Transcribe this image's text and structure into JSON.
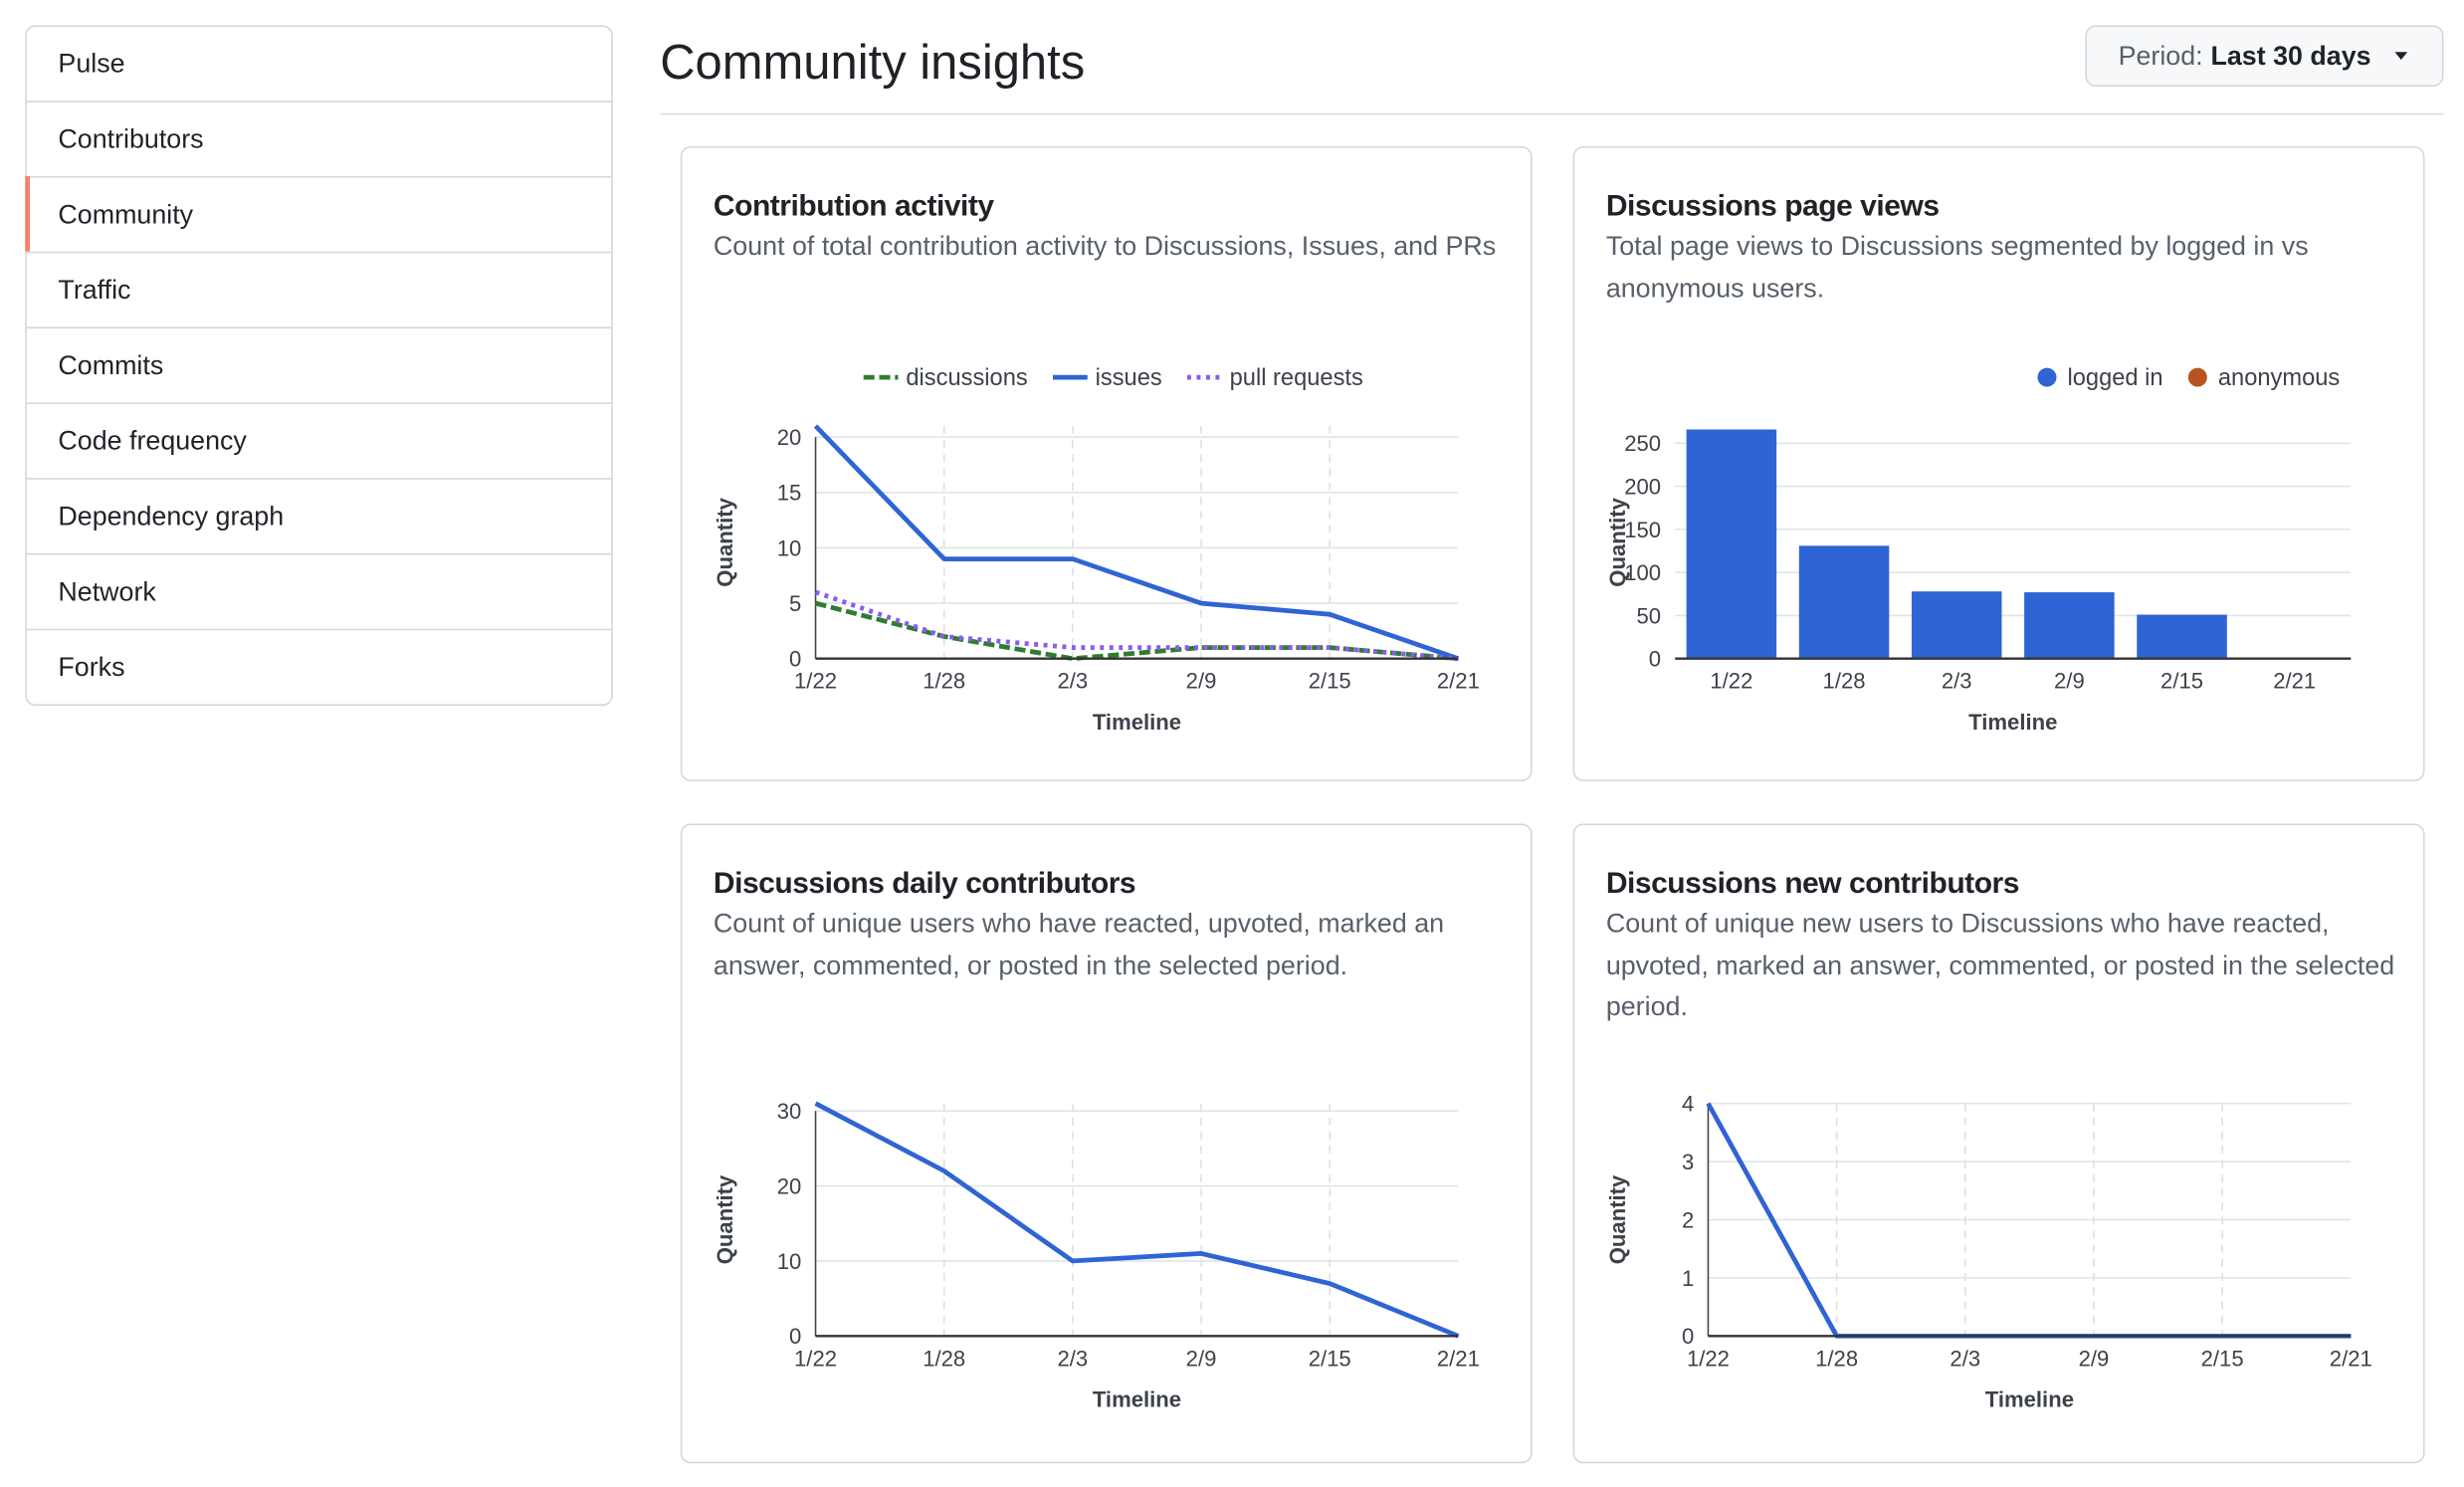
{
  "nav": {
    "items": [
      "Pulse",
      "Contributors",
      "Community",
      "Traffic",
      "Commits",
      "Code frequency",
      "Dependency graph",
      "Network",
      "Forks"
    ],
    "selected": 2
  },
  "header": {
    "title": "Community insights",
    "period_label": "Period:",
    "period_value": "Last 30 days"
  },
  "chart_data": [
    {
      "type": "line",
      "title": "Contribution activity",
      "subtitle": "Count of total contribution activity to Discussions, Issues, and PRs",
      "xlabel": "Timeline",
      "ylabel": "Quantity",
      "categories": [
        "1/22",
        "1/28",
        "2/3",
        "2/9",
        "2/15",
        "2/21"
      ],
      "series": [
        {
          "name": "discussions",
          "color": "#2e7d32",
          "dash": "dashed",
          "values": [
            5,
            2,
            0,
            1,
            1,
            0
          ]
        },
        {
          "name": "issues",
          "color": "#2f64d4",
          "dash": "solid",
          "values": [
            21,
            9,
            9,
            5,
            4,
            0
          ]
        },
        {
          "name": "pull requests",
          "color": "#8a5cf0",
          "dash": "dotted",
          "values": [
            6,
            2,
            1,
            1,
            1,
            0
          ]
        }
      ],
      "ylim": [
        0,
        21
      ],
      "yticks": [
        0,
        5,
        10,
        15,
        20
      ],
      "grid": true,
      "legend": "top-center"
    },
    {
      "type": "bar",
      "title": "Discussions page views",
      "subtitle": "Total page views to Discussions segmented by logged in vs anonymous users.",
      "xlabel": "Timeline",
      "ylabel": "Quantity",
      "categories": [
        "1/22",
        "1/28",
        "2/3",
        "2/9",
        "2/15",
        "2/21"
      ],
      "series": [
        {
          "name": "logged in",
          "color": "#2f64d4",
          "values": [
            266,
            131,
            78,
            77,
            51,
            0
          ]
        },
        {
          "name": "anonymous",
          "color": "#b5541c",
          "values": [
            0,
            0,
            0,
            0,
            0,
            0
          ]
        }
      ],
      "ylim": [
        0,
        270
      ],
      "yticks": [
        0,
        50,
        100,
        150,
        200,
        250
      ],
      "grid": true,
      "legend": "top-right"
    },
    {
      "type": "line",
      "title": "Discussions daily contributors",
      "subtitle": "Count of unique users who have reacted, upvoted, marked an answer, commented, or posted in the selected period.",
      "xlabel": "Timeline",
      "ylabel": "Quantity",
      "categories": [
        "1/22",
        "1/28",
        "2/3",
        "2/9",
        "2/15",
        "2/21"
      ],
      "series": [
        {
          "color": "#2f64d4",
          "dash": "solid",
          "values": [
            31,
            22,
            10,
            11,
            7,
            0
          ]
        }
      ],
      "ylim": [
        0,
        31
      ],
      "yticks": [
        0,
        10,
        20,
        30
      ],
      "grid": true
    },
    {
      "type": "line",
      "title": "Discussions new contributors",
      "subtitle": "Count of unique new users to Discussions who have reacted, upvoted, marked an answer, commented, or posted in the selected period.",
      "xlabel": "Timeline",
      "ylabel": "Quantity",
      "categories": [
        "1/22",
        "1/28",
        "2/3",
        "2/9",
        "2/15",
        "2/21"
      ],
      "series": [
        {
          "color": "#2f64d4",
          "dash": "solid",
          "values": [
            4,
            0,
            0,
            0,
            0,
            0
          ]
        }
      ],
      "ylim": [
        0,
        4
      ],
      "yticks": [
        0,
        1,
        2,
        3,
        4
      ],
      "grid": true
    }
  ]
}
